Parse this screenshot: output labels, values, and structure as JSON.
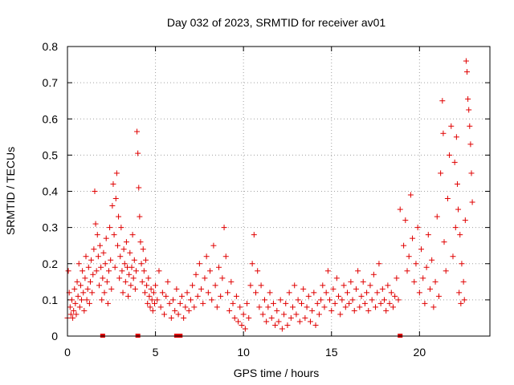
{
  "chart_data": {
    "type": "scatter",
    "title": "Day 032 of 2023, SRMTID for receiver av01",
    "xlabel": "GPS time / hours",
    "ylabel": "SRMTID / TECUs",
    "xlim": [
      0,
      24
    ],
    "ylim": [
      0,
      0.8
    ],
    "x_ticks": [
      0,
      5,
      10,
      15,
      20
    ],
    "x_tick_labels": [
      "0",
      "5",
      "10",
      "15",
      "20"
    ],
    "y_ticks": [
      0,
      0.1,
      0.2,
      0.3,
      0.4,
      0.5,
      0.6,
      0.7,
      0.8
    ],
    "y_tick_labels": [
      "0",
      "0.1",
      "0.2",
      "0.3",
      "0.4",
      "0.5",
      "0.6",
      "0.7",
      "0.8"
    ],
    "grid": true,
    "legend": "none",
    "marker": "+",
    "color": "#e00000",
    "series": [
      {
        "name": "SRMTID",
        "points": [
          [
            0.0,
            0.05
          ],
          [
            0.05,
            0.18
          ],
          [
            0.1,
            0.12
          ],
          [
            0.15,
            0.08
          ],
          [
            0.2,
            0.06
          ],
          [
            0.25,
            0.1
          ],
          [
            0.3,
            0.05
          ],
          [
            0.35,
            0.07
          ],
          [
            0.4,
            0.13
          ],
          [
            0.45,
            0.09
          ],
          [
            0.5,
            0.06
          ],
          [
            0.55,
            0.15
          ],
          [
            0.6,
            0.11
          ],
          [
            0.65,
            0.2
          ],
          [
            0.7,
            0.08
          ],
          [
            0.75,
            0.14
          ],
          [
            0.8,
            0.1
          ],
          [
            0.85,
            0.18
          ],
          [
            0.9,
            0.12
          ],
          [
            0.95,
            0.07
          ],
          [
            1.0,
            0.16
          ],
          [
            1.05,
            0.22
          ],
          [
            1.1,
            0.1
          ],
          [
            1.15,
            0.13
          ],
          [
            1.2,
            0.19
          ],
          [
            1.25,
            0.09
          ],
          [
            1.3,
            0.15
          ],
          [
            1.35,
            0.21
          ],
          [
            1.4,
            0.12
          ],
          [
            1.45,
            0.17
          ],
          [
            1.5,
            0.24
          ],
          [
            1.55,
            0.4
          ],
          [
            1.6,
            0.31
          ],
          [
            1.65,
            0.18
          ],
          [
            1.7,
            0.28
          ],
          [
            1.75,
            0.22
          ],
          [
            1.8,
            0.14
          ],
          [
            1.85,
            0.25
          ],
          [
            1.9,
            0.19
          ],
          [
            1.95,
            0.1
          ],
          [
            2.0,
            0.16
          ],
          [
            2.05,
            0.23
          ],
          [
            2.1,
            0.12
          ],
          [
            2.15,
            0.2
          ],
          [
            2.2,
            0.27
          ],
          [
            2.25,
            0.15
          ],
          [
            2.3,
            0.09
          ],
          [
            2.35,
            0.18
          ],
          [
            2.4,
            0.3
          ],
          [
            2.45,
            0.21
          ],
          [
            2.5,
            0.13
          ],
          [
            2.55,
            0.36
          ],
          [
            2.6,
            0.42
          ],
          [
            2.65,
            0.28
          ],
          [
            2.7,
            0.19
          ],
          [
            2.75,
            0.38
          ],
          [
            2.8,
            0.45
          ],
          [
            2.85,
            0.25
          ],
          [
            2.9,
            0.33
          ],
          [
            2.95,
            0.16
          ],
          [
            3.0,
            0.22
          ],
          [
            3.05,
            0.3
          ],
          [
            3.1,
            0.18
          ],
          [
            3.15,
            0.12
          ],
          [
            3.2,
            0.24
          ],
          [
            3.25,
            0.2
          ],
          [
            3.3,
            0.15
          ],
          [
            3.35,
            0.26
          ],
          [
            3.4,
            0.19
          ],
          [
            3.45,
            0.11
          ],
          [
            3.5,
            0.17
          ],
          [
            3.55,
            0.23
          ],
          [
            3.6,
            0.14
          ],
          [
            3.65,
            0.19
          ],
          [
            3.7,
            0.28
          ],
          [
            3.75,
            0.16
          ],
          [
            3.8,
            0.21
          ],
          [
            3.85,
            0.13
          ],
          [
            3.9,
            0.18
          ],
          [
            3.95,
            0.565
          ],
          [
            4.0,
            0.505
          ],
          [
            4.05,
            0.41
          ],
          [
            4.1,
            0.33
          ],
          [
            4.15,
            0.26
          ],
          [
            4.2,
            0.2
          ],
          [
            4.25,
            0.15
          ],
          [
            4.3,
            0.24
          ],
          [
            4.35,
            0.18
          ],
          [
            4.4,
            0.12
          ],
          [
            4.45,
            0.21
          ],
          [
            4.5,
            0.14
          ],
          [
            4.55,
            0.09
          ],
          [
            4.6,
            0.16
          ],
          [
            4.65,
            0.11
          ],
          [
            4.7,
            0.08
          ],
          [
            4.75,
            0.13
          ],
          [
            4.8,
            0.1
          ],
          [
            4.85,
            0.07
          ],
          [
            4.9,
            0.12
          ],
          [
            4.95,
            0.09
          ],
          [
            5.0,
            0.14
          ],
          [
            5.1,
            0.1
          ],
          [
            5.2,
            0.18
          ],
          [
            5.3,
            0.08
          ],
          [
            5.4,
            0.12
          ],
          [
            5.5,
            0.06
          ],
          [
            5.6,
            0.11
          ],
          [
            5.7,
            0.15
          ],
          [
            5.8,
            0.09
          ],
          [
            5.9,
            0.05
          ],
          [
            6.0,
            0.1
          ],
          [
            6.1,
            0.07
          ],
          [
            6.2,
            0.13
          ],
          [
            6.3,
            0.06
          ],
          [
            6.4,
            0.09
          ],
          [
            6.5,
            0.11
          ],
          [
            6.6,
            0.05
          ],
          [
            6.7,
            0.08
          ],
          [
            6.8,
            0.12
          ],
          [
            6.9,
            0.07
          ],
          [
            7.0,
            0.1
          ],
          [
            7.1,
            0.14
          ],
          [
            7.2,
            0.08
          ],
          [
            7.3,
            0.17
          ],
          [
            7.4,
            0.11
          ],
          [
            7.5,
            0.2
          ],
          [
            7.6,
            0.13
          ],
          [
            7.7,
            0.09
          ],
          [
            7.8,
            0.16
          ],
          [
            7.9,
            0.22
          ],
          [
            8.0,
            0.12
          ],
          [
            8.1,
            0.18
          ],
          [
            8.2,
            0.1
          ],
          [
            8.3,
            0.25
          ],
          [
            8.4,
            0.14
          ],
          [
            8.5,
            0.08
          ],
          [
            8.6,
            0.19
          ],
          [
            8.7,
            0.11
          ],
          [
            8.8,
            0.16
          ],
          [
            8.9,
            0.3
          ],
          [
            9.0,
            0.22
          ],
          [
            9.1,
            0.12
          ],
          [
            9.2,
            0.07
          ],
          [
            9.3,
            0.15
          ],
          [
            9.4,
            0.09
          ],
          [
            9.5,
            0.05
          ],
          [
            9.6,
            0.11
          ],
          [
            9.7,
            0.04
          ],
          [
            9.8,
            0.08
          ],
          [
            9.9,
            0.03
          ],
          [
            10.0,
            0.06
          ],
          [
            10.1,
            0.02
          ],
          [
            10.2,
            0.09
          ],
          [
            10.3,
            0.05
          ],
          [
            10.4,
            0.14
          ],
          [
            10.5,
            0.2
          ],
          [
            10.6,
            0.28
          ],
          [
            10.7,
            0.12
          ],
          [
            10.8,
            0.18
          ],
          [
            10.9,
            0.08
          ],
          [
            11.0,
            0.14
          ],
          [
            11.1,
            0.06
          ],
          [
            11.2,
            0.1
          ],
          [
            11.3,
            0.04
          ],
          [
            11.4,
            0.08
          ],
          [
            11.5,
            0.12
          ],
          [
            11.6,
            0.05
          ],
          [
            11.7,
            0.09
          ],
          [
            11.8,
            0.03
          ],
          [
            11.9,
            0.07
          ],
          [
            12.0,
            0.04
          ],
          [
            12.1,
            0.1
          ],
          [
            12.2,
            0.02
          ],
          [
            12.3,
            0.06
          ],
          [
            12.4,
            0.09
          ],
          [
            12.5,
            0.03
          ],
          [
            12.6,
            0.12
          ],
          [
            12.7,
            0.05
          ],
          [
            12.8,
            0.08
          ],
          [
            12.9,
            0.14
          ],
          [
            13.0,
            0.06
          ],
          [
            13.1,
            0.1
          ],
          [
            13.2,
            0.04
          ],
          [
            13.3,
            0.09
          ],
          [
            13.4,
            0.13
          ],
          [
            13.5,
            0.05
          ],
          [
            13.6,
            0.08
          ],
          [
            13.7,
            0.11
          ],
          [
            13.8,
            0.04
          ],
          [
            13.9,
            0.07
          ],
          [
            14.0,
            0.12
          ],
          [
            14.1,
            0.03
          ],
          [
            14.2,
            0.09
          ],
          [
            14.3,
            0.06
          ],
          [
            14.4,
            0.1
          ],
          [
            14.5,
            0.14
          ],
          [
            14.6,
            0.08
          ],
          [
            14.7,
            0.12
          ],
          [
            14.8,
            0.18
          ],
          [
            14.9,
            0.1
          ],
          [
            15.0,
            0.07
          ],
          [
            15.1,
            0.13
          ],
          [
            15.2,
            0.09
          ],
          [
            15.3,
            0.16
          ],
          [
            15.4,
            0.11
          ],
          [
            15.5,
            0.06
          ],
          [
            15.6,
            0.1
          ],
          [
            15.7,
            0.14
          ],
          [
            15.8,
            0.08
          ],
          [
            15.9,
            0.12
          ],
          [
            16.0,
            0.09
          ],
          [
            16.1,
            0.15
          ],
          [
            16.2,
            0.1
          ],
          [
            16.3,
            0.07
          ],
          [
            16.4,
            0.13
          ],
          [
            16.5,
            0.18
          ],
          [
            16.6,
            0.08
          ],
          [
            16.7,
            0.11
          ],
          [
            16.8,
            0.15
          ],
          [
            16.9,
            0.09
          ],
          [
            17.0,
            0.12
          ],
          [
            17.1,
            0.07
          ],
          [
            17.2,
            0.14
          ],
          [
            17.3,
            0.1
          ],
          [
            17.4,
            0.17
          ],
          [
            17.5,
            0.08
          ],
          [
            17.6,
            0.12
          ],
          [
            17.7,
            0.2
          ],
          [
            17.8,
            0.09
          ],
          [
            17.9,
            0.13
          ],
          [
            18.0,
            0.1
          ],
          [
            18.1,
            0.07
          ],
          [
            18.2,
            0.14
          ],
          [
            18.3,
            0.09
          ],
          [
            18.4,
            0.12
          ],
          [
            18.5,
            0.08
          ],
          [
            18.6,
            0.11
          ],
          [
            18.7,
            0.16
          ],
          [
            18.8,
            0.1
          ],
          [
            18.9,
            0.35
          ],
          [
            19.1,
            0.25
          ],
          [
            19.2,
            0.32
          ],
          [
            19.3,
            0.18
          ],
          [
            19.4,
            0.22
          ],
          [
            19.5,
            0.39
          ],
          [
            19.6,
            0.27
          ],
          [
            19.7,
            0.15
          ],
          [
            19.8,
            0.2
          ],
          [
            19.9,
            0.3
          ],
          [
            20.0,
            0.12
          ],
          [
            20.1,
            0.24
          ],
          [
            20.2,
            0.16
          ],
          [
            20.3,
            0.09
          ],
          [
            20.4,
            0.19
          ],
          [
            20.5,
            0.28
          ],
          [
            20.6,
            0.13
          ],
          [
            20.7,
            0.21
          ],
          [
            20.8,
            0.08
          ],
          [
            20.9,
            0.15
          ],
          [
            21.0,
            0.33
          ],
          [
            21.1,
            0.11
          ],
          [
            21.2,
            0.45
          ],
          [
            21.3,
            0.65
          ],
          [
            21.35,
            0.56
          ],
          [
            21.4,
            0.26
          ],
          [
            21.5,
            0.18
          ],
          [
            21.6,
            0.38
          ],
          [
            21.7,
            0.5
          ],
          [
            21.8,
            0.58
          ],
          [
            21.9,
            0.22
          ],
          [
            22.0,
            0.48
          ],
          [
            22.05,
            0.3
          ],
          [
            22.1,
            0.55
          ],
          [
            22.15,
            0.42
          ],
          [
            22.2,
            0.35
          ],
          [
            22.3,
            0.28
          ],
          [
            22.4,
            0.2
          ],
          [
            22.5,
            0.15
          ],
          [
            22.6,
            0.32
          ],
          [
            22.65,
            0.76
          ],
          [
            22.7,
            0.73
          ],
          [
            22.75,
            0.655
          ],
          [
            22.8,
            0.625
          ],
          [
            22.85,
            0.58
          ],
          [
            22.9,
            0.53
          ],
          [
            22.95,
            0.45
          ],
          [
            23.0,
            0.37
          ],
          [
            22.55,
            0.1
          ],
          [
            22.35,
            0.09
          ],
          [
            22.25,
            0.12
          ]
        ]
      }
    ],
    "data_gap_markers_x": [
      2.0,
      4.0,
      6.2,
      6.4,
      18.9
    ]
  }
}
